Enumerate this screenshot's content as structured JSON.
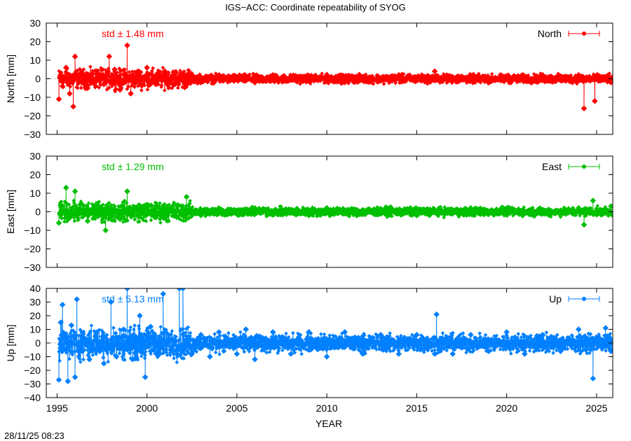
{
  "title": "IGS−ACC: Coordinate repeatability of SYOG",
  "timestamp": "28/11/25 08:23",
  "xlabel": "YEAR",
  "chart_data": {
    "type": "line",
    "title": "IGS−ACC: Coordinate repeatability of SYOG",
    "xlabel": "YEAR",
    "xlim": [
      1994.4,
      2025.9
    ],
    "xticks": [
      1995,
      2000,
      2005,
      2010,
      2015,
      2020,
      2025
    ],
    "panels": [
      {
        "name": "North",
        "ylabel": "North [mm]",
        "std_label": "std ± 1.48 mm",
        "legend": "North",
        "color": "#ff0000",
        "ylim": [
          -30,
          30
        ],
        "yticks": [
          -30,
          -20,
          -10,
          0,
          10,
          20,
          30
        ],
        "data": [
          [
            1995.1,
            -11
          ],
          [
            1995.2,
            2
          ],
          [
            1995.3,
            -4
          ],
          [
            1995.5,
            6
          ],
          [
            1995.7,
            -8
          ],
          [
            1995.9,
            -15
          ],
          [
            1996.0,
            12
          ],
          [
            1996.3,
            3
          ],
          [
            1996.7,
            -5
          ],
          [
            1997.2,
            4
          ],
          [
            1997.6,
            -3
          ],
          [
            1997.9,
            12
          ],
          [
            1998.2,
            5
          ],
          [
            1998.5,
            -6
          ],
          [
            1998.9,
            18
          ],
          [
            1999.1,
            -8
          ],
          [
            1999.5,
            4
          ],
          [
            2000.0,
            6
          ],
          [
            2000.5,
            -3
          ],
          [
            2001.0,
            4
          ],
          [
            2002.0,
            3
          ],
          [
            2003.0,
            -2
          ],
          [
            2004.0,
            2
          ],
          [
            2005.0,
            1
          ],
          [
            2006.0,
            -2
          ],
          [
            2007.0,
            2
          ],
          [
            2008.0,
            1
          ],
          [
            2009.0,
            -1
          ],
          [
            2010.0,
            2
          ],
          [
            2011.0,
            -2
          ],
          [
            2012.0,
            1
          ],
          [
            2013.0,
            -1
          ],
          [
            2014.0,
            2
          ],
          [
            2015.0,
            -1
          ],
          [
            2016.0,
            4
          ],
          [
            2017.0,
            -1
          ],
          [
            2018.0,
            1
          ],
          [
            2019.0,
            -2
          ],
          [
            2020.0,
            1
          ],
          [
            2021.0,
            -1
          ],
          [
            2022.0,
            2
          ],
          [
            2023.0,
            -1
          ],
          [
            2024.0,
            2
          ],
          [
            2024.3,
            -16
          ],
          [
            2024.6,
            1
          ],
          [
            2024.9,
            -12
          ],
          [
            2025.2,
            -1
          ],
          [
            2025.6,
            1
          ],
          [
            2025.8,
            -2
          ]
        ]
      },
      {
        "name": "East",
        "ylabel": "East [mm]",
        "std_label": "std ± 1.29 mm",
        "legend": "East",
        "color": "#00c000",
        "ylim": [
          -30,
          30
        ],
        "yticks": [
          -30,
          -20,
          -10,
          0,
          10,
          20,
          30
        ],
        "data": [
          [
            1995.1,
            -6
          ],
          [
            1995.3,
            3
          ],
          [
            1995.5,
            13
          ],
          [
            1995.7,
            -3
          ],
          [
            1996.0,
            11
          ],
          [
            1996.3,
            4
          ],
          [
            1996.7,
            -5
          ],
          [
            1997.2,
            3
          ],
          [
            1997.7,
            -10
          ],
          [
            1998.0,
            2
          ],
          [
            1998.5,
            -4
          ],
          [
            1998.9,
            11
          ],
          [
            1999.2,
            -2
          ],
          [
            1999.8,
            3
          ],
          [
            2000.5,
            -3
          ],
          [
            2001.0,
            2
          ],
          [
            2002.0,
            -2
          ],
          [
            2002.2,
            8
          ],
          [
            2003.0,
            -2
          ],
          [
            2004.0,
            2
          ],
          [
            2005.0,
            -1
          ],
          [
            2006.0,
            2
          ],
          [
            2007.0,
            -1
          ],
          [
            2008.0,
            1
          ],
          [
            2009.0,
            -2
          ],
          [
            2010.0,
            2
          ],
          [
            2011.0,
            -1
          ],
          [
            2012.0,
            1
          ],
          [
            2013.0,
            -1
          ],
          [
            2014.0,
            1
          ],
          [
            2015.0,
            -2
          ],
          [
            2016.0,
            1
          ],
          [
            2017.0,
            -1
          ],
          [
            2018.0,
            2
          ],
          [
            2019.0,
            -1
          ],
          [
            2020.0,
            1
          ],
          [
            2021.0,
            -1
          ],
          [
            2022.0,
            1
          ],
          [
            2023.0,
            -1
          ],
          [
            2024.0,
            2
          ],
          [
            2024.3,
            -7
          ],
          [
            2024.8,
            6
          ],
          [
            2025.2,
            1
          ],
          [
            2025.8,
            3
          ]
        ]
      },
      {
        "name": "Up",
        "ylabel": "Up [mm]",
        "std_label": "std ± 5.13 mm",
        "legend": "Up",
        "color": "#0080ff",
        "ylim": [
          -40,
          40
        ],
        "yticks": [
          -40,
          -30,
          -20,
          -10,
          0,
          10,
          20,
          30,
          40
        ],
        "data": [
          [
            1995.1,
            -27
          ],
          [
            1995.2,
            15
          ],
          [
            1995.3,
            28
          ],
          [
            1995.5,
            -5
          ],
          [
            1995.6,
            -28
          ],
          [
            1995.8,
            13
          ],
          [
            1996.0,
            -25
          ],
          [
            1996.1,
            32
          ],
          [
            1996.4,
            5
          ],
          [
            1996.8,
            -12
          ],
          [
            1997.2,
            8
          ],
          [
            1997.6,
            -15
          ],
          [
            1998.0,
            30
          ],
          [
            1998.3,
            -10
          ],
          [
            1998.7,
            10
          ],
          [
            1998.9,
            40
          ],
          [
            1999.2,
            -12
          ],
          [
            1999.6,
            20
          ],
          [
            1999.9,
            -25
          ],
          [
            2000.2,
            12
          ],
          [
            2000.7,
            -8
          ],
          [
            2000.9,
            36
          ],
          [
            2001.3,
            -5
          ],
          [
            2001.8,
            40
          ],
          [
            2002.0,
            40
          ],
          [
            2002.5,
            -8
          ],
          [
            2003.0,
            6
          ],
          [
            2003.5,
            -10
          ],
          [
            2004.0,
            8
          ],
          [
            2005.0,
            -8
          ],
          [
            2005.5,
            10
          ],
          [
            2006.0,
            -12
          ],
          [
            2007.0,
            8
          ],
          [
            2008.0,
            -8
          ],
          [
            2009.0,
            8
          ],
          [
            2010.0,
            -10
          ],
          [
            2011.0,
            8
          ],
          [
            2012.0,
            -8
          ],
          [
            2013.0,
            6
          ],
          [
            2014.0,
            -8
          ],
          [
            2015.0,
            6
          ],
          [
            2016.0,
            -8
          ],
          [
            2016.1,
            21
          ],
          [
            2017.0,
            -8
          ],
          [
            2018.0,
            6
          ],
          [
            2019.0,
            -6
          ],
          [
            2020.0,
            8
          ],
          [
            2021.0,
            -8
          ],
          [
            2022.0,
            6
          ],
          [
            2023.0,
            -6
          ],
          [
            2024.0,
            10
          ],
          [
            2024.4,
            -5
          ],
          [
            2024.8,
            -26
          ],
          [
            2025.1,
            4
          ],
          [
            2025.5,
            11
          ],
          [
            2025.8,
            -6
          ]
        ]
      }
    ]
  }
}
